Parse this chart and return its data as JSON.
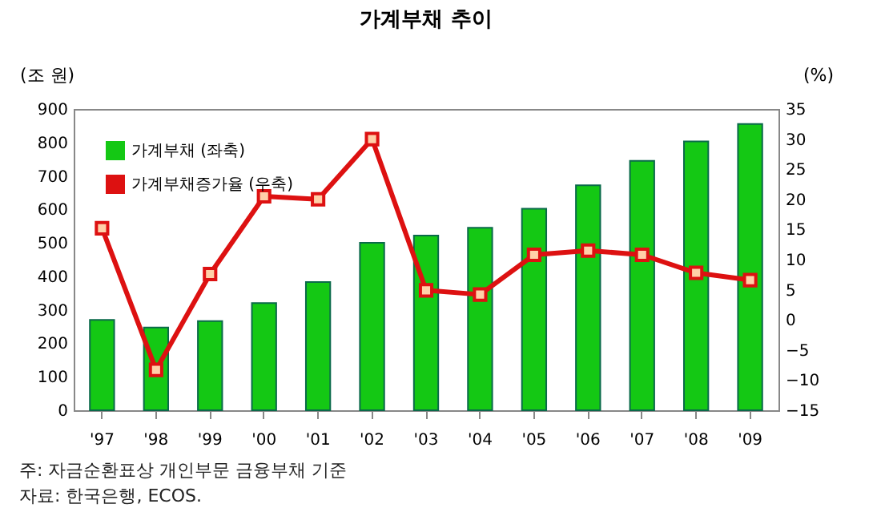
{
  "chart_data": {
    "type": "bar",
    "title": "가계부채 추이",
    "ylabel": "(조 원)",
    "y2label": "(%)",
    "categories": [
      "'97",
      "'98",
      "'99",
      "'00",
      "'01",
      "'02",
      "'03",
      "'04",
      "'05",
      "'06",
      "'07",
      "'08",
      "'09"
    ],
    "series": [
      {
        "name": "가계부채 (좌축)",
        "color": "#14c814",
        "values": [
          270,
          247,
          266,
          320,
          383,
          500,
          522,
          545,
          602,
          672,
          745,
          803,
          855
        ]
      },
      {
        "name": "가계부채증가율 (우축)",
        "type": "line",
        "axis": "y2",
        "color": "#dd1111",
        "marker": "square",
        "values": [
          15.2,
          -8.3,
          7.6,
          20.5,
          20.0,
          30.0,
          4.9,
          4.2,
          10.8,
          11.5,
          10.8,
          7.8,
          6.6
        ]
      }
    ],
    "ylim": [
      0,
      900
    ],
    "yticks": [
      0,
      100,
      200,
      300,
      400,
      500,
      600,
      700,
      800,
      900
    ],
    "y2lim": [
      -15,
      35
    ],
    "y2ticks": [
      -15,
      -10,
      -5,
      0,
      5,
      10,
      15,
      20,
      25,
      30,
      35
    ],
    "legend": "top left",
    "grid": false,
    "annotations": [
      "주: 자금순환표상 개인부문 금융부채 기준",
      "자료: 한국은행, ECOS."
    ]
  }
}
